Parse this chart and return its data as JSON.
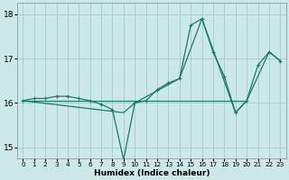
{
  "xlabel": "Humidex (Indice chaleur)",
  "background_color": "#cce8e8",
  "grid_color": "#aacece",
  "line_color": "#1a7a6a",
  "xlim": [
    -0.5,
    23.5
  ],
  "ylim": [
    14.75,
    18.25
  ],
  "yticks": [
    15,
    16,
    17,
    18
  ],
  "xticks": [
    0,
    1,
    2,
    3,
    4,
    5,
    6,
    7,
    8,
    9,
    10,
    11,
    12,
    13,
    14,
    15,
    16,
    17,
    18,
    19,
    20,
    21,
    22,
    23
  ],
  "series_main": [
    [
      0,
      16.05
    ],
    [
      1,
      16.1
    ],
    [
      2,
      16.1
    ],
    [
      3,
      16.15
    ],
    [
      4,
      16.15
    ],
    [
      5,
      16.1
    ],
    [
      6,
      16.05
    ],
    [
      7,
      15.97
    ],
    [
      8,
      15.85
    ],
    [
      9,
      14.72
    ],
    [
      10,
      16.0
    ],
    [
      11,
      16.05
    ],
    [
      12,
      16.3
    ],
    [
      13,
      16.45
    ],
    [
      14,
      16.55
    ],
    [
      15,
      17.75
    ],
    [
      16,
      17.9
    ],
    [
      17,
      17.15
    ],
    [
      18,
      16.6
    ],
    [
      19,
      15.78
    ],
    [
      20,
      16.05
    ],
    [
      21,
      16.85
    ],
    [
      22,
      17.15
    ],
    [
      23,
      16.95
    ]
  ],
  "series_straight": [
    [
      0,
      16.05
    ],
    [
      20,
      16.05
    ]
  ],
  "series_envelope": [
    [
      0,
      16.05
    ],
    [
      9,
      15.78
    ],
    [
      10,
      16.0
    ],
    [
      14,
      16.55
    ],
    [
      16,
      17.9
    ],
    [
      19,
      15.78
    ],
    [
      20,
      16.05
    ],
    [
      22,
      17.15
    ],
    [
      23,
      16.95
    ]
  ]
}
